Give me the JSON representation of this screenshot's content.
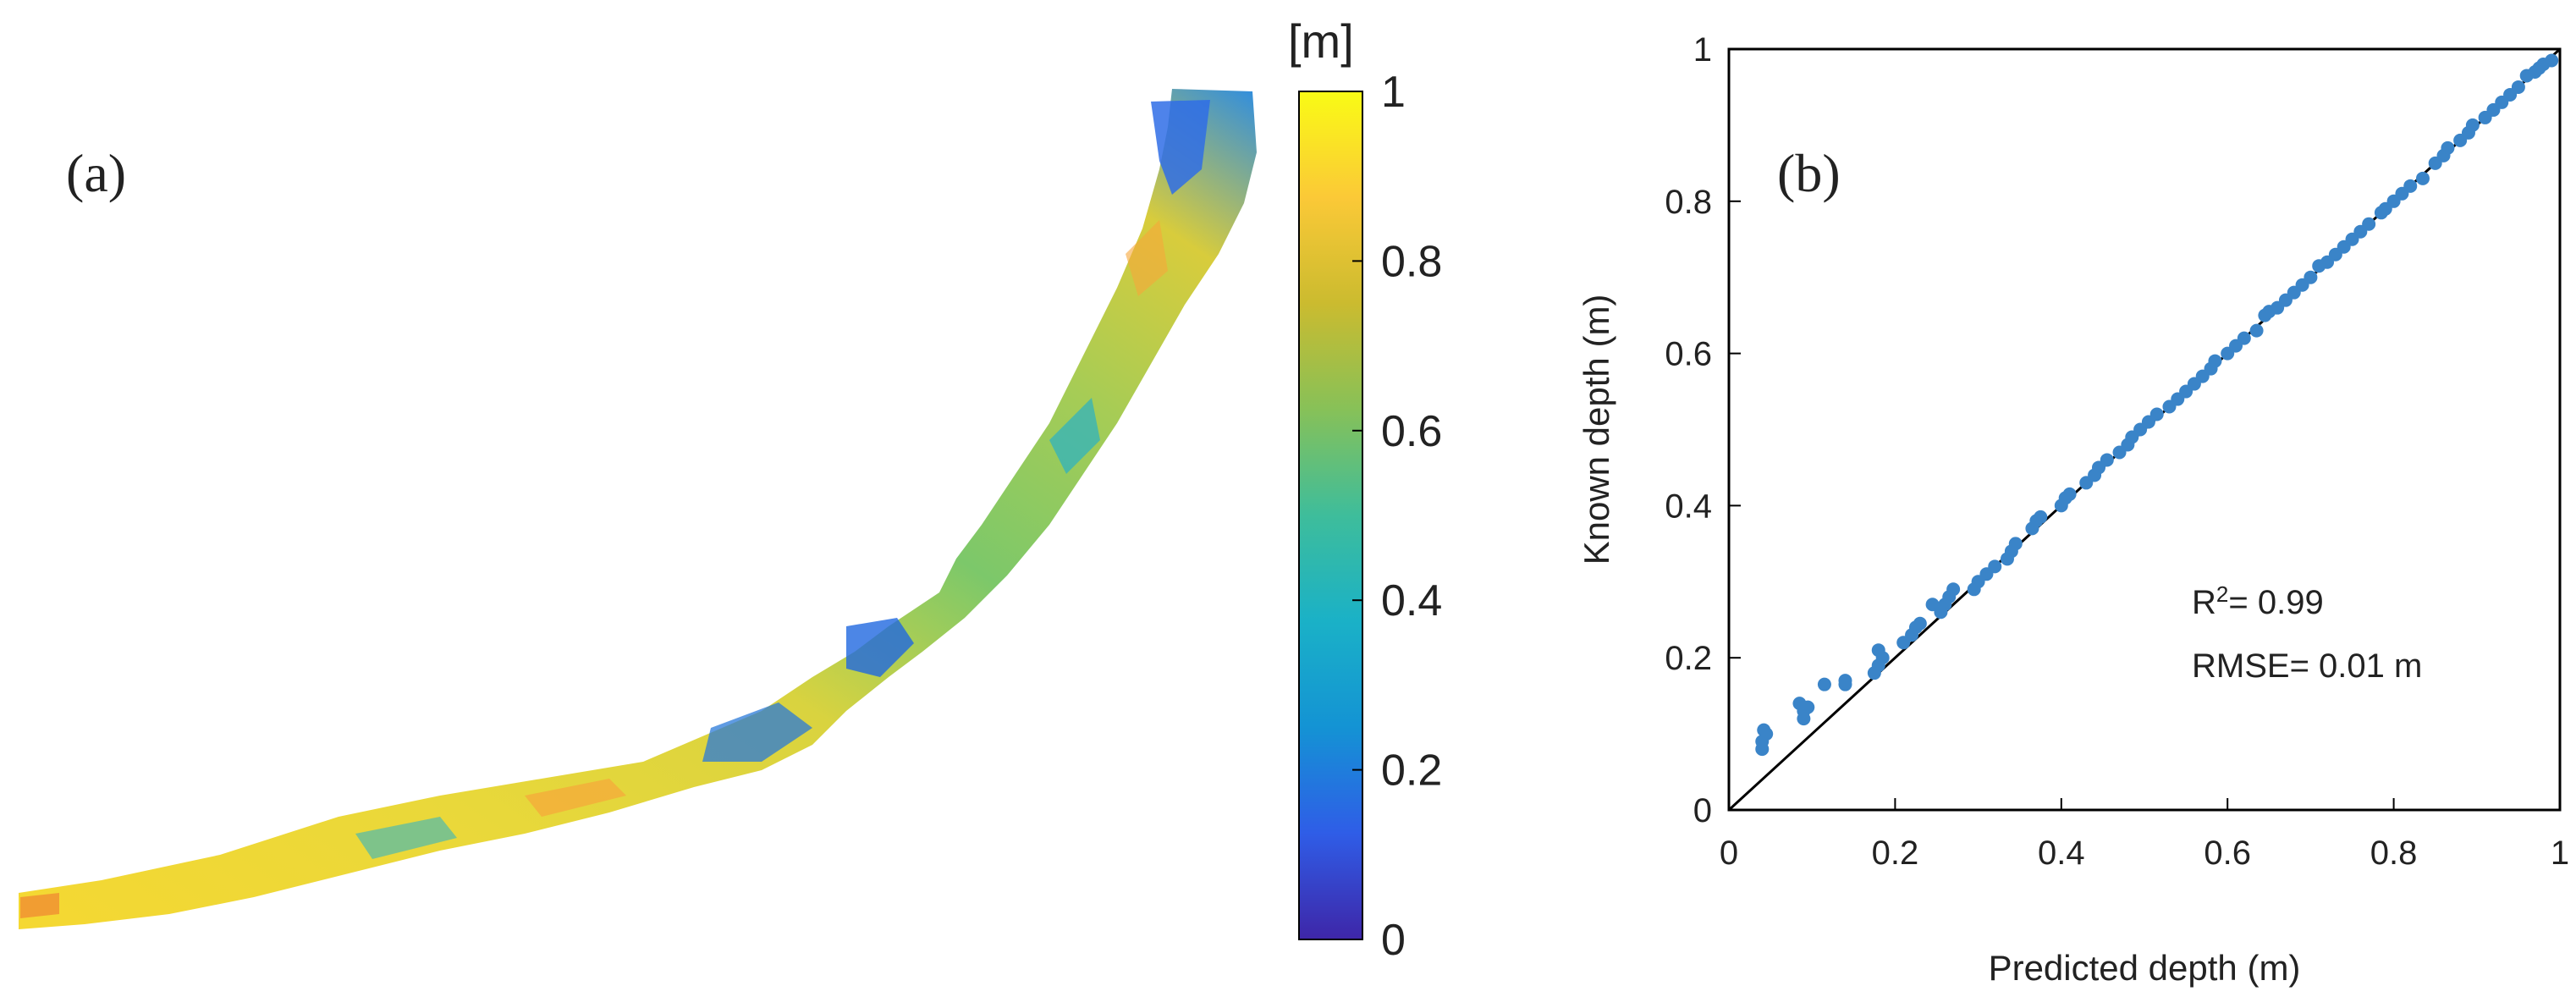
{
  "panel_a": {
    "label": "(a)",
    "colorbar": {
      "unit": "[m]",
      "ticks": [
        "0",
        "0.2",
        "0.4",
        "0.6",
        "0.8",
        "1"
      ],
      "range": [
        0,
        1
      ],
      "colormap": [
        "#3e26a8",
        "#2f5de7",
        "#1493d4",
        "#1ab1c7",
        "#3ebd9b",
        "#87c158",
        "#cbbb2f",
        "#fbc937",
        "#f9fb15"
      ]
    }
  },
  "chart_data": {
    "type": "scatter",
    "label": "(b)",
    "xlabel": "Predicted depth (m)",
    "ylabel": "Known depth (m)",
    "xlim": [
      0,
      1
    ],
    "ylim": [
      0,
      1
    ],
    "xticks": [
      "0",
      "0.2",
      "0.4",
      "0.6",
      "0.8",
      "1"
    ],
    "yticks": [
      "0",
      "0.2",
      "0.4",
      "0.6",
      "0.8",
      "1"
    ],
    "grid": false,
    "annotations": {
      "r2_prefix": "R",
      "r2_sup": "2",
      "r2_value": "= 0.99",
      "rmse": "RMSE= 0.01 m"
    },
    "colors": {
      "points": "#3a84c8",
      "line": "#000000"
    },
    "line_1to1": [
      [
        0,
        0
      ],
      [
        1,
        1
      ]
    ],
    "points": [
      [
        0.04,
        0.08
      ],
      [
        0.04,
        0.09
      ],
      [
        0.045,
        0.1
      ],
      [
        0.042,
        0.105
      ],
      [
        0.09,
        0.12
      ],
      [
        0.09,
        0.13
      ],
      [
        0.095,
        0.135
      ],
      [
        0.085,
        0.14
      ],
      [
        0.115,
        0.165
      ],
      [
        0.14,
        0.165
      ],
      [
        0.14,
        0.17
      ],
      [
        0.175,
        0.18
      ],
      [
        0.18,
        0.19
      ],
      [
        0.185,
        0.2
      ],
      [
        0.18,
        0.21
      ],
      [
        0.21,
        0.22
      ],
      [
        0.22,
        0.23
      ],
      [
        0.225,
        0.24
      ],
      [
        0.23,
        0.245
      ],
      [
        0.245,
        0.27
      ],
      [
        0.255,
        0.26
      ],
      [
        0.26,
        0.27
      ],
      [
        0.265,
        0.28
      ],
      [
        0.27,
        0.29
      ],
      [
        0.295,
        0.29
      ],
      [
        0.3,
        0.3
      ],
      [
        0.31,
        0.31
      ],
      [
        0.32,
        0.32
      ],
      [
        0.335,
        0.33
      ],
      [
        0.34,
        0.34
      ],
      [
        0.345,
        0.35
      ],
      [
        0.365,
        0.37
      ],
      [
        0.37,
        0.38
      ],
      [
        0.375,
        0.385
      ],
      [
        0.4,
        0.4
      ],
      [
        0.405,
        0.41
      ],
      [
        0.41,
        0.415
      ],
      [
        0.43,
        0.43
      ],
      [
        0.44,
        0.44
      ],
      [
        0.445,
        0.45
      ],
      [
        0.455,
        0.46
      ],
      [
        0.47,
        0.47
      ],
      [
        0.48,
        0.48
      ],
      [
        0.485,
        0.49
      ],
      [
        0.495,
        0.5
      ],
      [
        0.505,
        0.51
      ],
      [
        0.515,
        0.52
      ],
      [
        0.53,
        0.53
      ],
      [
        0.54,
        0.54
      ],
      [
        0.55,
        0.55
      ],
      [
        0.56,
        0.56
      ],
      [
        0.57,
        0.57
      ],
      [
        0.58,
        0.58
      ],
      [
        0.585,
        0.59
      ],
      [
        0.6,
        0.6
      ],
      [
        0.61,
        0.61
      ],
      [
        0.62,
        0.62
      ],
      [
        0.635,
        0.63
      ],
      [
        0.645,
        0.65
      ],
      [
        0.65,
        0.655
      ],
      [
        0.66,
        0.66
      ],
      [
        0.67,
        0.67
      ],
      [
        0.68,
        0.68
      ],
      [
        0.69,
        0.69
      ],
      [
        0.7,
        0.7
      ],
      [
        0.71,
        0.715
      ],
      [
        0.72,
        0.72
      ],
      [
        0.73,
        0.73
      ],
      [
        0.74,
        0.74
      ],
      [
        0.75,
        0.75
      ],
      [
        0.76,
        0.76
      ],
      [
        0.77,
        0.77
      ],
      [
        0.785,
        0.785
      ],
      [
        0.79,
        0.79
      ],
      [
        0.8,
        0.8
      ],
      [
        0.81,
        0.81
      ],
      [
        0.82,
        0.82
      ],
      [
        0.835,
        0.83
      ],
      [
        0.85,
        0.85
      ],
      [
        0.86,
        0.86
      ],
      [
        0.865,
        0.87
      ],
      [
        0.88,
        0.88
      ],
      [
        0.89,
        0.89
      ],
      [
        0.895,
        0.9
      ],
      [
        0.91,
        0.91
      ],
      [
        0.92,
        0.92
      ],
      [
        0.93,
        0.93
      ],
      [
        0.94,
        0.94
      ],
      [
        0.95,
        0.95
      ],
      [
        0.96,
        0.965
      ],
      [
        0.97,
        0.97
      ],
      [
        0.975,
        0.975
      ],
      [
        0.98,
        0.98
      ],
      [
        0.99,
        0.985
      ]
    ]
  }
}
